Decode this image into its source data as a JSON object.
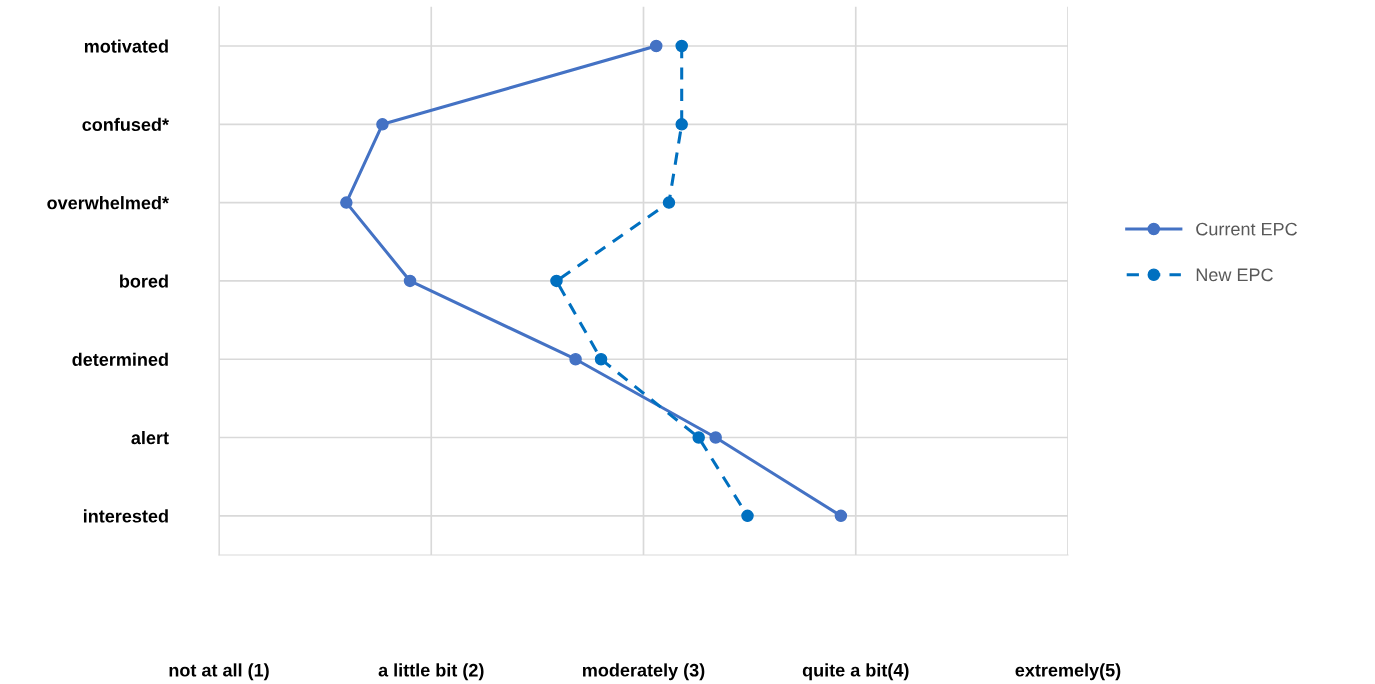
{
  "chart_data": {
    "type": "line",
    "orientation": "horizontal",
    "categories": [
      "motivated",
      "confused*",
      "overwhelmed*",
      "bored",
      "determined",
      "alert",
      "interested"
    ],
    "series": [
      {
        "name": "Current EPC",
        "color": "#4472c4",
        "line_style": "solid",
        "values": [
          3.06,
          1.77,
          1.6,
          1.9,
          2.68,
          3.34,
          3.93
        ]
      },
      {
        "name": "New EPC",
        "color": "#0070c0",
        "line_style": "dashed",
        "values": [
          3.18,
          3.18,
          3.12,
          2.59,
          2.8,
          3.26,
          3.49
        ]
      }
    ],
    "xlim": [
      1,
      5
    ],
    "xticks": [
      {
        "value": 1,
        "label": "not at all (1)"
      },
      {
        "value": 2,
        "label": "a little bit (2)"
      },
      {
        "value": 3,
        "label": "moderately (3)"
      },
      {
        "value": 4,
        "label": "quite a bit(4)"
      },
      {
        "value": 5,
        "label": "extremely(5)"
      }
    ],
    "marker": "circle",
    "grid": true,
    "legend": "right"
  }
}
